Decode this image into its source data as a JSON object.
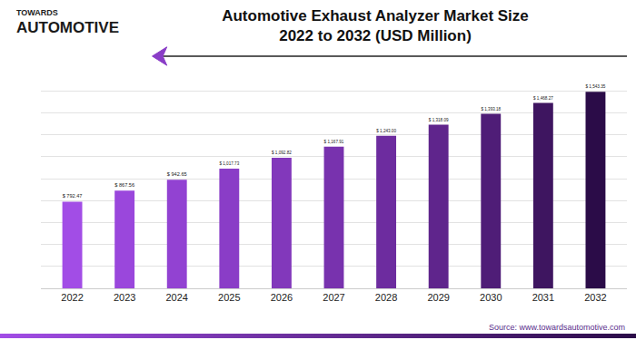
{
  "chart_data": {
    "type": "bar",
    "title": "Automotive Exhaust Analyzer Market Size\n2022 to 2032 (USD Million)",
    "annotations": [
      "TOWARDS",
      "AUTOMOTIVE",
      "Source: www.towardsautomotive.com"
    ],
    "categories": [
      "2022",
      "2023",
      "2024",
      "2025",
      "2026",
      "2027",
      "2028",
      "2029",
      "2030",
      "2031",
      "2032"
    ],
    "values": [
      792.47,
      867.56,
      942.65,
      1017.73,
      1092.82,
      1167.91,
      1243.0,
      1318.09,
      1393.18,
      1468.27,
      1543.35
    ],
    "value_labels": [
      "$ 792.47",
      "$ 867.56",
      "$ 942.65",
      "$ 1,017.73",
      "$ 1,092.82",
      "$ 1,167.91",
      "$ 1,243.00",
      "$ 1,318.09",
      "$ 1,393.18",
      "$ 1,468.27",
      "$ 1,543.35"
    ],
    "colors": [
      "#a24de6",
      "#9a47dc",
      "#9242d2",
      "#8a3dc7",
      "#8238bb",
      "#7832ae",
      "#6d2c9f",
      "#5f258c",
      "#4f1d77",
      "#3e1560",
      "#2b0c48"
    ],
    "ylim": [
      200,
      1700
    ],
    "yticks": [
      200,
      350,
      500,
      650,
      800,
      950,
      1100,
      1250,
      1400,
      1550,
      1700
    ],
    "grid": true,
    "data_labels": true,
    "tick_labels": "x"
  }
}
